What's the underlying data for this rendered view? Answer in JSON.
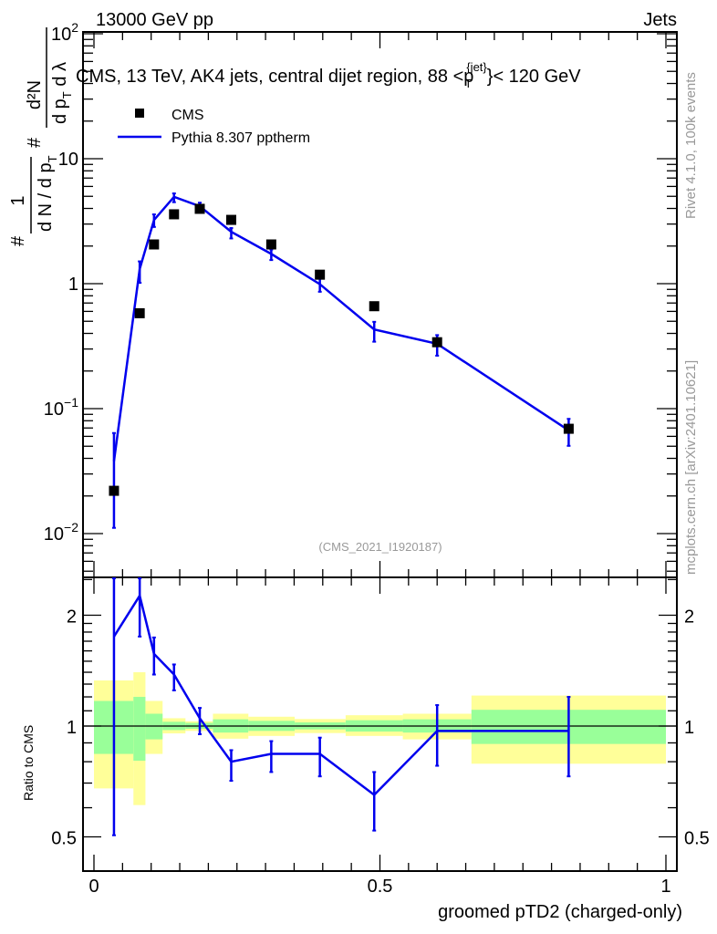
{
  "header": {
    "left": "13000 GeV pp",
    "right": "Jets"
  },
  "side_labels": {
    "rivet": "Rivet 4.1.0,  100k events",
    "mcplots": "mcplots.cern.ch [arXiv:2401.10621]"
  },
  "chart_data": [
    {
      "type": "scatter",
      "panel": "main",
      "title": "CMS, 13 TeV, AK4 jets, central dijet region, 88 <",
      "title_pt": "p",
      "title_sub": "T",
      "title_sup": "{jet}",
      "title_end": "}< 120 GeV",
      "ylabel": {
        "hash1": "#",
        "num1": "1",
        "den1": "d N / d p",
        "den1_sub": "T",
        "hash2": "#",
        "num2": "d²N",
        "den2": "d p",
        "den2_sub": "T",
        "den2_end": " d λ"
      },
      "yscale": "log",
      "ylim": [
        0.0045,
        104
      ],
      "xlim": [
        -0.02,
        1.02
      ],
      "analysis_tag": "(CMS_2021_I1920187)",
      "ytick_labels": [
        {
          "value": 100,
          "base": "10",
          "exp": "2"
        },
        {
          "value": 10,
          "base": "10",
          "exp": ""
        },
        {
          "value": 1,
          "base": "1",
          "exp": ""
        },
        {
          "value": 0.1,
          "base": "10",
          "exp": "−1"
        },
        {
          "value": 0.01,
          "base": "10",
          "exp": "−2"
        }
      ],
      "legend": {
        "position": "top-left",
        "entries": [
          "CMS",
          "Pythia 8.307 pptherm"
        ]
      },
      "x": [
        0.035,
        0.08,
        0.105,
        0.14,
        0.185,
        0.24,
        0.31,
        0.395,
        0.49,
        0.6,
        0.83
      ],
      "series": [
        {
          "name": "CMS",
          "color": "#000000",
          "marker": "square",
          "values": [
            0.022,
            0.58,
            2.06,
            3.59,
            3.97,
            3.24,
            2.06,
            1.18,
            0.66,
            0.34,
            0.069
          ]
        },
        {
          "name": "Pythia 8.307 pptherm",
          "color": "#0000ee",
          "marker": "line",
          "values": [
            0.038,
            1.31,
            3.23,
            4.95,
            4.17,
            2.6,
            1.73,
            0.99,
            0.43,
            0.33,
            0.067
          ]
        }
      ]
    },
    {
      "type": "line",
      "panel": "ratio",
      "ylabel": "Ratio to CMS",
      "xlabel": "groomed pTD2 (charged-only)",
      "yscale": "log",
      "ylim": [
        0.4,
        2.53
      ],
      "xlim": [
        -0.02,
        1.02
      ],
      "ytick_labels": [
        {
          "value": 2,
          "label": "2"
        },
        {
          "value": 1,
          "label": "1"
        },
        {
          "value": 0.5,
          "label": "0.5"
        }
      ],
      "xtick_labels": [
        {
          "value": 0,
          "label": "0"
        },
        {
          "value": 0.5,
          "label": "0.5"
        },
        {
          "value": 1,
          "label": "1"
        }
      ],
      "band_edges": [
        0,
        0.069,
        0.09,
        0.12,
        0.16,
        0.208,
        0.27,
        0.351,
        0.44,
        0.54,
        0.66,
        1.0
      ],
      "band_outer": {
        "color": "#ffff99",
        "low": [
          0.677,
          0.61,
          0.84,
          0.955,
          0.97,
          0.924,
          0.94,
          0.957,
          0.94,
          0.92,
          0.79
        ],
        "high": [
          1.33,
          1.4,
          1.17,
          1.05,
          1.03,
          1.08,
          1.06,
          1.045,
          1.07,
          1.08,
          1.21
        ]
      },
      "band_inner": {
        "color": "#99ff99",
        "low": [
          0.84,
          0.805,
          0.92,
          0.975,
          0.983,
          0.96,
          0.97,
          0.979,
          0.966,
          0.96,
          0.894
        ],
        "high": [
          1.17,
          1.2,
          1.08,
          1.027,
          1.02,
          1.043,
          1.033,
          1.023,
          1.037,
          1.043,
          1.107
        ]
      },
      "x": [
        0.035,
        0.08,
        0.105,
        0.14,
        0.185,
        0.24,
        0.31,
        0.395,
        0.49,
        0.6,
        0.83
      ],
      "ratio": [
        1.75,
        2.26,
        1.57,
        1.38,
        1.05,
        0.8,
        0.84,
        0.84,
        0.65,
        0.97,
        0.97
      ],
      "ratio_low": [
        0.505,
        1.75,
        1.38,
        1.25,
        0.95,
        0.71,
        0.75,
        0.73,
        0.52,
        0.78,
        0.73
      ],
      "ratio_high": [
        2.9,
        2.6,
        1.74,
        1.47,
        1.12,
        0.86,
        0.91,
        0.93,
        0.75,
        1.14,
        1.2
      ]
    }
  ]
}
